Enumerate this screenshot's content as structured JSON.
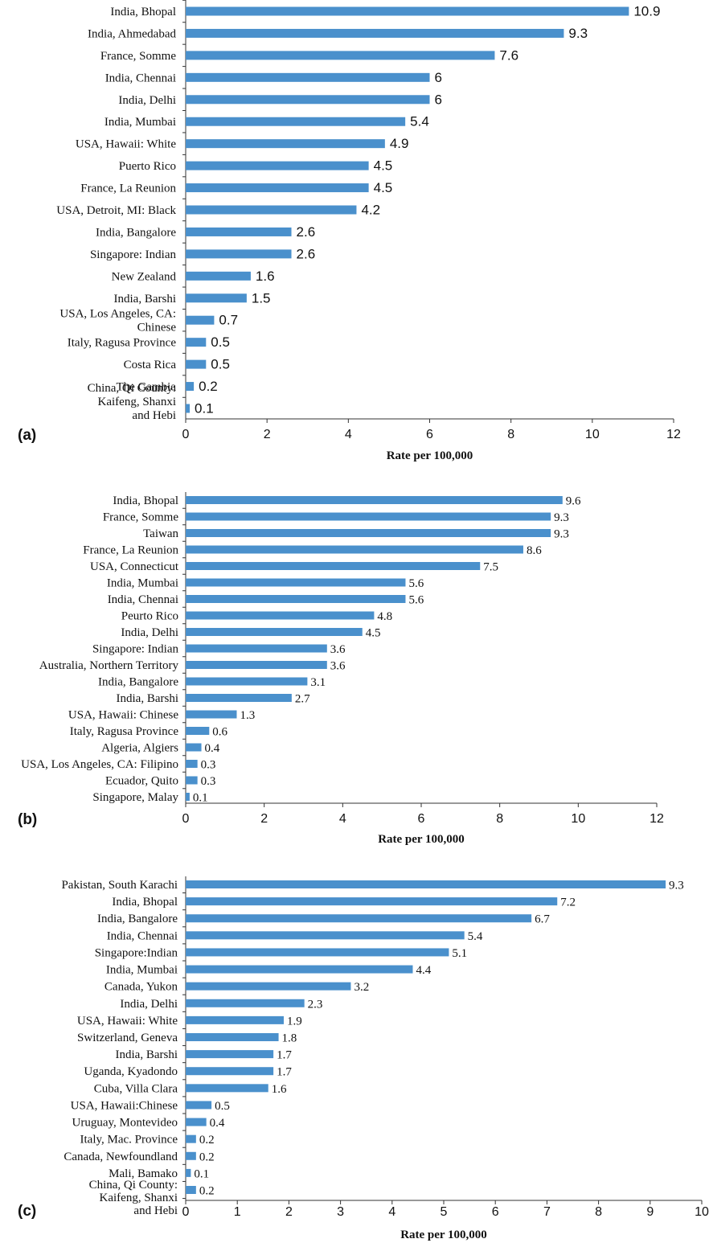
{
  "colors": {
    "bar": "#4a90cc",
    "axis": "#333333",
    "text": "#111111"
  },
  "chart_data": [
    {
      "type": "bar",
      "orientation": "horizontal",
      "panel": "(a)",
      "xlabel": "Rate per 100,000",
      "xlim": [
        0,
        12
      ],
      "xticks": [
        0,
        2,
        4,
        6,
        8,
        10,
        12
      ],
      "categories": [
        "India, Bhopal",
        "India, Ahmedabad",
        "France, Somme",
        "India, Chennai",
        "India, Delhi",
        "India, Mumbai",
        "USA, Hawaii: White",
        "Puerto Rico",
        "France, La Reunion",
        "USA, Detroit, MI: Black",
        "India, Bangalore",
        "Singapore: Indian",
        "New Zealand",
        "India, Barshi",
        "USA, Los Angeles, CA:\nChinese",
        "Italy, Ragusa Province",
        "Costa Rica",
        "The Gambia",
        "China, Qi County:\nKaifeng, Shanxi\nand Hebi"
      ],
      "value_labels": [
        "10.9",
        "9.3",
        "7.6",
        "6",
        "6",
        "5.4",
        "4.9",
        "4.5",
        "4.5",
        "4.2",
        "2.6",
        "2.6",
        "1.6",
        "1.5",
        "0.7",
        "0.5",
        "0.5",
        "0.2",
        "0.1"
      ],
      "values": [
        10.9,
        9.3,
        7.6,
        6,
        6,
        5.4,
        4.9,
        4.5,
        4.5,
        4.2,
        2.6,
        2.6,
        1.6,
        1.5,
        0.7,
        0.5,
        0.5,
        0.2,
        0.1
      ]
    },
    {
      "type": "bar",
      "orientation": "horizontal",
      "panel": "(b)",
      "xlabel": "Rate per 100,000",
      "xlim": [
        0,
        12
      ],
      "xticks": [
        0,
        2,
        4,
        6,
        8,
        10,
        12
      ],
      "categories": [
        "India, Bhopal",
        "France, Somme",
        "Taiwan",
        "France, La Reunion",
        "USA, Connecticut",
        "India, Mumbai",
        "India, Chennai",
        "Peurto Rico",
        "India, Delhi",
        "Singapore: Indian",
        "Australia, Northern Territory",
        "India, Bangalore",
        "India, Barshi",
        "USA, Hawaii: Chinese",
        "Italy, Ragusa Province",
        "Algeria, Algiers",
        "USA, Los Angeles, CA: Filipino",
        "Ecuador, Quito",
        "Singapore, Malay"
      ],
      "value_labels": [
        "9.6",
        "9.3",
        "9.3",
        "8.6",
        "7.5",
        "5.6",
        "5.6",
        "4.8",
        "4.5",
        "3.6",
        "3.6",
        "3.1",
        "2.7",
        "1.3",
        "0.6",
        "0.4",
        "0.3",
        "0.3",
        "0.1"
      ],
      "values": [
        9.6,
        9.3,
        9.3,
        8.6,
        7.5,
        5.6,
        5.6,
        4.8,
        4.5,
        3.6,
        3.6,
        3.1,
        2.7,
        1.3,
        0.6,
        0.4,
        0.3,
        0.3,
        0.1
      ]
    },
    {
      "type": "bar",
      "orientation": "horizontal",
      "panel": "(c)",
      "xlabel": "Rate per 100,000",
      "xlim": [
        0,
        10
      ],
      "xticks": [
        0,
        1,
        2,
        3,
        4,
        5,
        6,
        7,
        8,
        9,
        10
      ],
      "categories": [
        "Pakistan, South Karachi",
        "India, Bhopal",
        "India, Bangalore",
        "India, Chennai",
        "Singapore:Indian",
        "India, Mumbai",
        "Canada, Yukon",
        "India, Delhi",
        "USA, Hawaii: White",
        "Switzerland, Geneva",
        "India, Barshi",
        "Uganda, Kyadondo",
        "Cuba, Villa Clara",
        "USA, Hawaii:Chinese",
        "Uruguay, Montevideo",
        "Italy, Mac. Province",
        "Canada, Newfoundland",
        "Mali, Bamako",
        "China, Qi County:\nKaifeng, Shanxi\nand Hebi"
      ],
      "value_labels": [
        "9.3",
        "7.2",
        "6.7",
        "5.4",
        "5.1",
        "4.4",
        "3.2",
        "2.3",
        "1.9",
        "1.8",
        "1.7",
        "1.7",
        "1.6",
        "0.5",
        "0.4",
        "0.2",
        "0.2",
        "0.1",
        "0.2"
      ],
      "values": [
        9.3,
        7.2,
        6.7,
        5.4,
        5.1,
        4.4,
        3.2,
        2.3,
        1.9,
        1.8,
        1.7,
        1.7,
        1.6,
        0.5,
        0.4,
        0.2,
        0.2,
        0.1,
        0.2
      ]
    }
  ]
}
